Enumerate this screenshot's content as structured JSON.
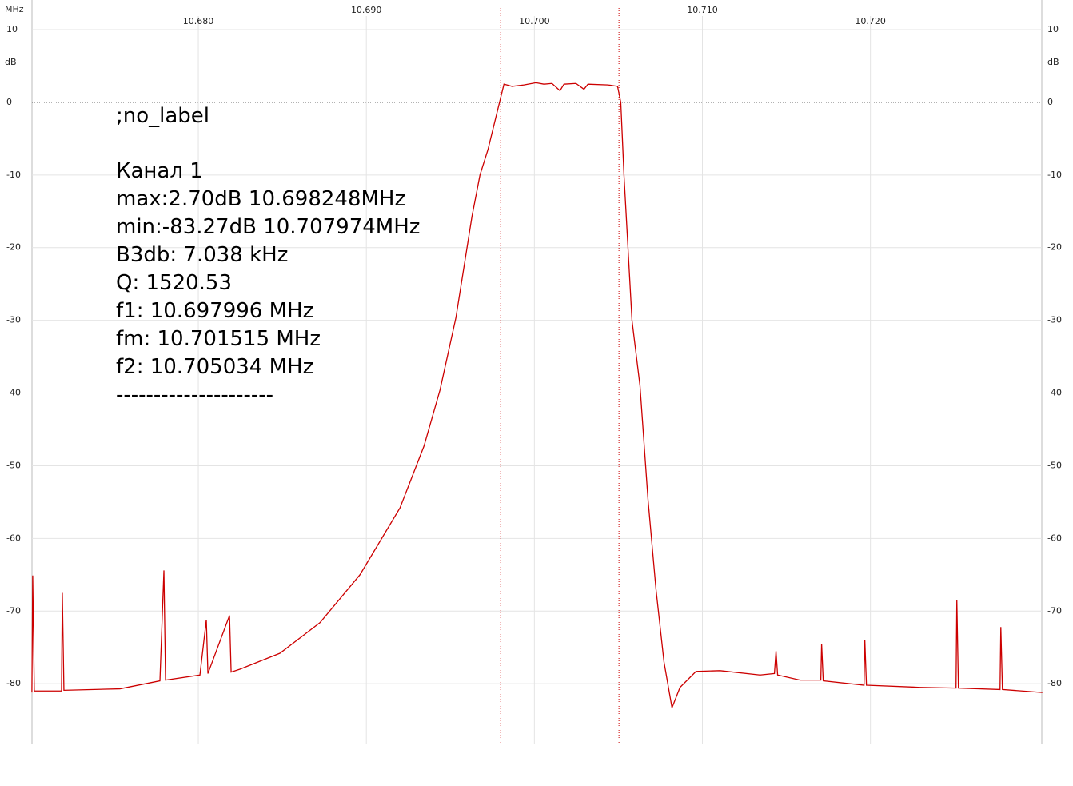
{
  "chart_data": {
    "type": "line",
    "x_unit": "MHz",
    "y_unit": "dB",
    "xlim": [
      10.6701,
      10.7302
    ],
    "ylim": [
      -90.1,
      10
    ],
    "xticks": [
      {
        "value": 10.68,
        "label": "10.680"
      },
      {
        "value": 10.69,
        "label": "10.690"
      },
      {
        "value": 10.7,
        "label": "10.700"
      },
      {
        "value": 10.71,
        "label": "10.710"
      },
      {
        "value": 10.72,
        "label": "10.720"
      }
    ],
    "yticks": [
      10,
      0,
      -10,
      -20,
      -30,
      -40,
      -50,
      -60,
      -70,
      -80
    ],
    "grid": true,
    "reference_level": 0,
    "color": "#cc0000",
    "markers": [
      10.697996,
      10.705034
    ],
    "annotations": [
      ";no_label",
      "Канал 1",
      "max:2.70dB 10.698248MHz",
      "min:-83.27dB 10.707974MHz",
      "B3db: 7.038 kHz",
      "Q: 1520.53",
      "f1: 10.697996 MHz",
      "fm: 10.701515 MHz",
      "f2: 10.705034 MHz",
      "---------------------"
    ],
    "x": [
      10.670095,
      10.670143,
      10.670238,
      10.671857,
      10.671905,
      10.672,
      10.675333,
      10.677714,
      10.677952,
      10.678048,
      10.680095,
      10.680476,
      10.680571,
      10.681857,
      10.681952,
      10.682476,
      10.684857,
      10.687238,
      10.689619,
      10.692,
      10.693429,
      10.694381,
      10.695333,
      10.696286,
      10.696762,
      10.697238,
      10.697714,
      10.69819,
      10.698667,
      10.699381,
      10.700095,
      10.700571,
      10.701048,
      10.701524,
      10.701762,
      10.702476,
      10.702952,
      10.70319,
      10.704381,
      10.704952,
      10.705143,
      10.705333,
      10.70581,
      10.706286,
      10.706762,
      10.707238,
      10.707714,
      10.70819,
      10.708667,
      10.709619,
      10.711048,
      10.713429,
      10.714286,
      10.714381,
      10.714476,
      10.71581,
      10.717048,
      10.717095,
      10.71719,
      10.719619,
      10.719667,
      10.719762,
      10.722952,
      10.725095,
      10.725143,
      10.725238,
      10.727714,
      10.727762,
      10.727857,
      10.730238
    ],
    "values": [
      -81.2,
      -65.1,
      -81.0,
      -81.0,
      -67.5,
      -80.9,
      -80.7,
      -79.6,
      -64.4,
      -79.5,
      -78.8,
      -71.2,
      -78.6,
      -70.6,
      -78.4,
      -78.0,
      -75.8,
      -71.6,
      -65.0,
      -55.8,
      -47.3,
      -39.6,
      -29.6,
      -15.7,
      -10.0,
      -6.5,
      -2.0,
      2.5,
      2.2,
      2.4,
      2.7,
      2.5,
      2.6,
      1.6,
      2.5,
      2.6,
      1.8,
      2.5,
      2.4,
      2.2,
      0.0,
      -10.0,
      -30.0,
      -39.0,
      -54.6,
      -67.0,
      -77.0,
      -83.3,
      -80.5,
      -78.3,
      -78.2,
      -78.8,
      -78.6,
      -75.5,
      -78.8,
      -79.5,
      -79.5,
      -74.5,
      -79.6,
      -80.2,
      -74.0,
      -80.2,
      -80.5,
      -80.6,
      -68.5,
      -80.6,
      -80.8,
      -72.2,
      -80.8,
      -81.2
    ]
  }
}
